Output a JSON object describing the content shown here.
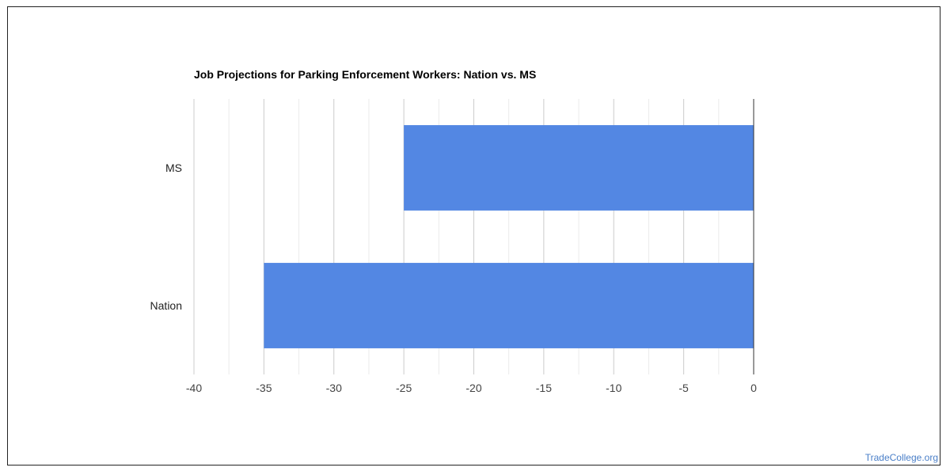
{
  "chart_data": {
    "type": "bar",
    "orientation": "horizontal",
    "title": "Job Projections for Parking Enforcement Workers: Nation vs. MS",
    "categories": [
      "MS",
      "Nation"
    ],
    "values": [
      -25,
      -35
    ],
    "xlim": [
      -40,
      0
    ],
    "xticks": [
      "-40",
      "-35",
      "-30",
      "-25",
      "-20",
      "-15",
      "-10",
      "-5",
      "0"
    ],
    "grid": true,
    "bar_color": "#5387e3",
    "legend": "none"
  },
  "watermark": "TradeCollege.org"
}
